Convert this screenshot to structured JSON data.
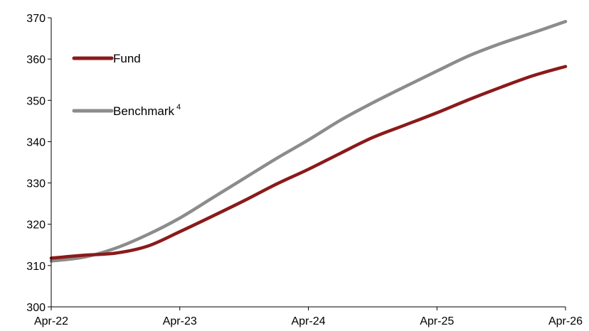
{
  "chart_data": {
    "type": "line",
    "x": [
      "Apr-22",
      "Jul-22",
      "Oct-22",
      "Jan-23",
      "Apr-23",
      "Jul-23",
      "Oct-23",
      "Jan-24",
      "Apr-24",
      "Jul-24",
      "Oct-24",
      "Jan-25",
      "Apr-25",
      "Jul-25",
      "Oct-25",
      "Jan-26",
      "Apr-26"
    ],
    "x_tick_labels": [
      "Apr-22",
      "Apr-23",
      "Apr-24",
      "Apr-25",
      "Apr-26"
    ],
    "y_tick_labels": [
      "300",
      "310",
      "320",
      "330",
      "340",
      "350",
      "360",
      "370"
    ],
    "ylim": [
      300,
      370
    ],
    "grid": false,
    "legend_position": "top-left",
    "series": [
      {
        "name": "Fund",
        "color": "#8b1a1a",
        "values": [
          311.8,
          312.5,
          313.0,
          314.7,
          318.2,
          321.9,
          325.7,
          329.7,
          333.3,
          337.2,
          341.0,
          344.0,
          347.0,
          350.2,
          353.2,
          356.0,
          358.2
        ]
      },
      {
        "name": "Benchmark",
        "name_superscript": "4",
        "color": "#8c8c8c",
        "values": [
          311.1,
          312.0,
          314.2,
          317.5,
          321.5,
          326.3,
          331.1,
          335.9,
          340.4,
          345.2,
          349.4,
          353.3,
          357.1,
          360.8,
          363.8,
          366.4,
          369.1
        ]
      }
    ]
  }
}
